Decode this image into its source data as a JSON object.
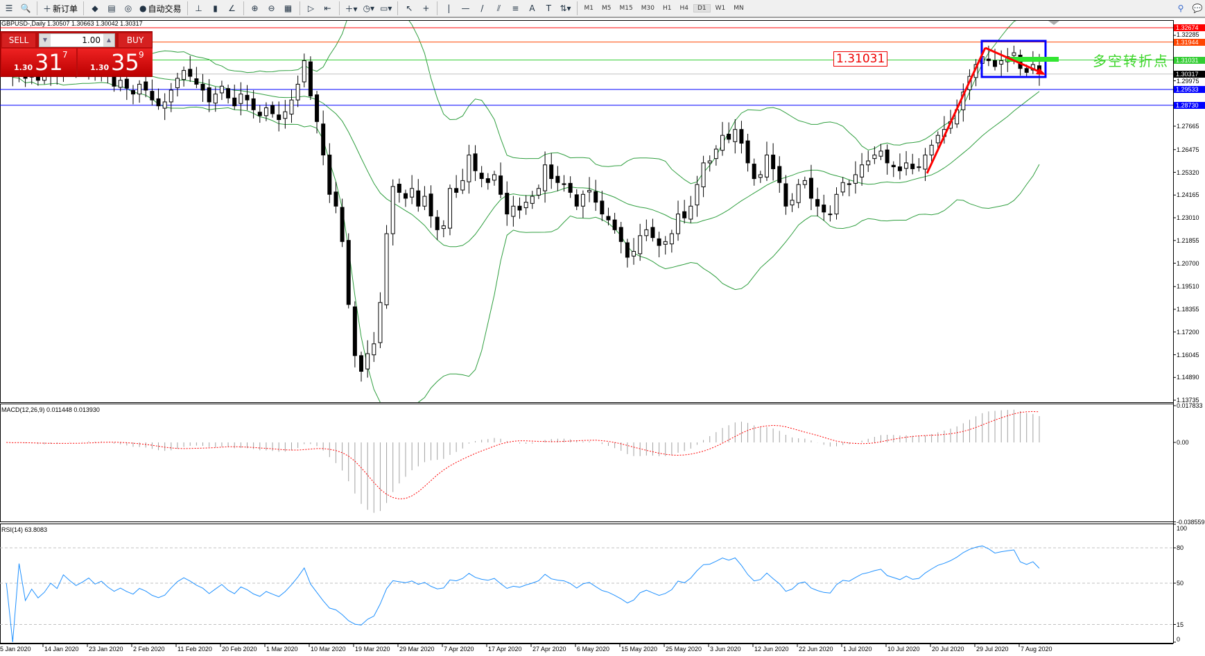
{
  "toolbar": {
    "items": [
      {
        "name": "market-watch",
        "glyph": "☰"
      },
      {
        "name": "data-window",
        "glyph": "🔍"
      },
      {
        "name": "new-order",
        "glyph": "＋",
        "label": "新订单"
      },
      {
        "name": "metaeditor",
        "glyph": "◆"
      },
      {
        "name": "terminal",
        "glyph": "▤"
      },
      {
        "name": "signals",
        "glyph": "◎"
      },
      {
        "name": "auto-trading",
        "glyph": "●",
        "label": "自动交易"
      },
      {
        "name": "bar-chart",
        "glyph": "⊥"
      },
      {
        "name": "candlestick",
        "glyph": "▮"
      },
      {
        "name": "line-chart",
        "glyph": "∠"
      },
      {
        "name": "zoom-in",
        "glyph": "⊕"
      },
      {
        "name": "zoom-out",
        "glyph": "⊖"
      },
      {
        "name": "tile-windows",
        "glyph": "▦"
      },
      {
        "name": "auto-scroll",
        "glyph": "▷"
      },
      {
        "name": "chart-shift",
        "glyph": "⇤"
      },
      {
        "name": "indicators",
        "glyph": "＋▾"
      },
      {
        "name": "periods",
        "glyph": "◷▾"
      },
      {
        "name": "templates",
        "glyph": "▭▾"
      },
      {
        "name": "cursor",
        "glyph": "↖"
      },
      {
        "name": "crosshair",
        "glyph": "+"
      },
      {
        "name": "vertical-line",
        "glyph": "|"
      },
      {
        "name": "horizontal-line",
        "glyph": "—"
      },
      {
        "name": "trend-line",
        "glyph": "/"
      },
      {
        "name": "equidistant-channel",
        "glyph": "⫽"
      },
      {
        "name": "fibonacci",
        "glyph": "≡"
      },
      {
        "name": "text",
        "glyph": "A"
      },
      {
        "name": "text-label",
        "glyph": "T"
      },
      {
        "name": "arrows",
        "glyph": "⇅▾"
      }
    ],
    "timeframes": [
      "M1",
      "M5",
      "M15",
      "M30",
      "H1",
      "H4",
      "D1",
      "W1",
      "MN"
    ],
    "active_timeframe": "D1"
  },
  "chart": {
    "symbol_info": "GBPUSD-,Daily  1.30507 1.30663 1.30042 1.30317"
  },
  "trade_panel": {
    "sell_label": "SELL",
    "buy_label": "BUY",
    "lot": "1.00",
    "sell": {
      "big": "1.30",
      "main": "31",
      "small": "7"
    },
    "buy": {
      "big": "1.30",
      "main": "35",
      "small": "9"
    }
  },
  "price_axis": {
    "ticks": [
      "1.32285",
      "1.29975",
      "1.27665",
      "1.26475",
      "1.25320",
      "1.24165",
      "1.23010",
      "1.21855",
      "1.20700",
      "1.19510",
      "1.18355",
      "1.17200",
      "1.16045",
      "1.14890",
      "1.13735"
    ]
  },
  "levels": [
    {
      "price": "1.32674",
      "color": "#ff0000"
    },
    {
      "price": "1.31944",
      "color": "#ff4500"
    },
    {
      "price": "1.31031",
      "color": "#32cd32"
    },
    {
      "price": "1.30317",
      "color": "#000000",
      "line": "#c0c0c0"
    },
    {
      "price": "1.29533",
      "color": "#0000ff"
    },
    {
      "price": "1.28730",
      "color": "#0000ff"
    }
  ],
  "annotations": {
    "level_label": "1.31031",
    "text": "多空转折点"
  },
  "macd": {
    "label": "MACD(12,26,9) 0.011448 0.013930",
    "ticks": [
      "0.017833",
      "0.00",
      "-0.038559"
    ]
  },
  "rsi": {
    "label": "RSI(14) 63.8083",
    "ticks": [
      "100",
      "80",
      "50",
      "15",
      "0"
    ]
  },
  "x_axis": [
    "5 Jan 2020",
    "14 Jan 2020",
    "23 Jan 2020",
    "2 Feb 2020",
    "11 Feb 2020",
    "20 Feb 2020",
    "1 Mar 2020",
    "10 Mar 2020",
    "19 Mar 2020",
    "29 Mar 2020",
    "7 Apr 2020",
    "17 Apr 2020",
    "27 Apr 2020",
    "6 May 2020",
    "15 May 2020",
    "25 May 2020",
    "3 Jun 2020",
    "12 Jun 2020",
    "22 Jun 2020",
    "1 Jul 2020",
    "10 Jul 2020",
    "20 Jul 2020",
    "29 Jul 2020",
    "7 Aug 2020"
  ],
  "chart_data": {
    "type": "candlestick",
    "symbol": "GBPUSD",
    "timeframe": "Daily",
    "ylim": [
      1.13735,
      1.32674
    ],
    "closes": [
      1.306,
      1.303,
      1.309,
      1.301,
      1.304,
      1.3,
      1.302,
      1.306,
      1.303,
      1.312,
      1.308,
      1.304,
      1.307,
      1.311,
      1.305,
      1.308,
      1.302,
      1.297,
      1.3,
      1.296,
      1.293,
      1.298,
      1.295,
      1.29,
      1.287,
      1.289,
      1.295,
      1.301,
      1.305,
      1.302,
      1.298,
      1.295,
      1.289,
      1.293,
      1.297,
      1.291,
      1.287,
      1.293,
      1.29,
      1.285,
      1.282,
      1.286,
      1.283,
      1.28,
      1.284,
      1.29,
      1.298,
      1.31,
      1.292,
      1.279,
      1.262,
      1.242,
      1.236,
      1.218,
      1.186,
      1.16,
      1.152,
      1.161,
      1.166,
      1.187,
      1.222,
      1.246,
      1.243,
      1.24,
      1.245,
      1.236,
      1.241,
      1.231,
      1.224,
      1.226,
      1.245,
      1.243,
      1.249,
      1.262,
      1.254,
      1.25,
      1.248,
      1.252,
      1.242,
      1.232,
      1.236,
      1.234,
      1.238,
      1.241,
      1.245,
      1.257,
      1.25,
      1.248,
      1.247,
      1.243,
      1.236,
      1.242,
      1.244,
      1.238,
      1.232,
      1.229,
      1.224,
      1.218,
      1.21,
      1.213,
      1.221,
      1.224,
      1.22,
      1.216,
      1.218,
      1.222,
      1.232,
      1.23,
      1.236,
      1.247,
      1.258,
      1.259,
      1.265,
      1.272,
      1.27,
      1.275,
      1.268,
      1.258,
      1.25,
      1.252,
      1.262,
      1.255,
      1.248,
      1.236,
      1.239,
      1.247,
      1.249,
      1.24,
      1.236,
      1.233,
      1.232,
      1.242,
      1.248,
      1.247,
      1.252,
      1.257,
      1.259,
      1.262,
      1.264,
      1.258,
      1.256,
      1.254,
      1.258,
      1.255,
      1.256,
      1.262,
      1.267,
      1.272,
      1.275,
      1.279,
      1.285,
      1.294,
      1.302,
      1.308,
      1.312,
      1.31,
      1.307,
      1.31,
      1.312,
      1.314,
      1.306,
      1.304,
      1.308,
      1.30317
    ]
  },
  "colors": {
    "bands": "#2e9e3e",
    "macd_signal": "#ff0000",
    "macd_hist": "#a0a0a0",
    "rsi": "#1e90ff"
  }
}
